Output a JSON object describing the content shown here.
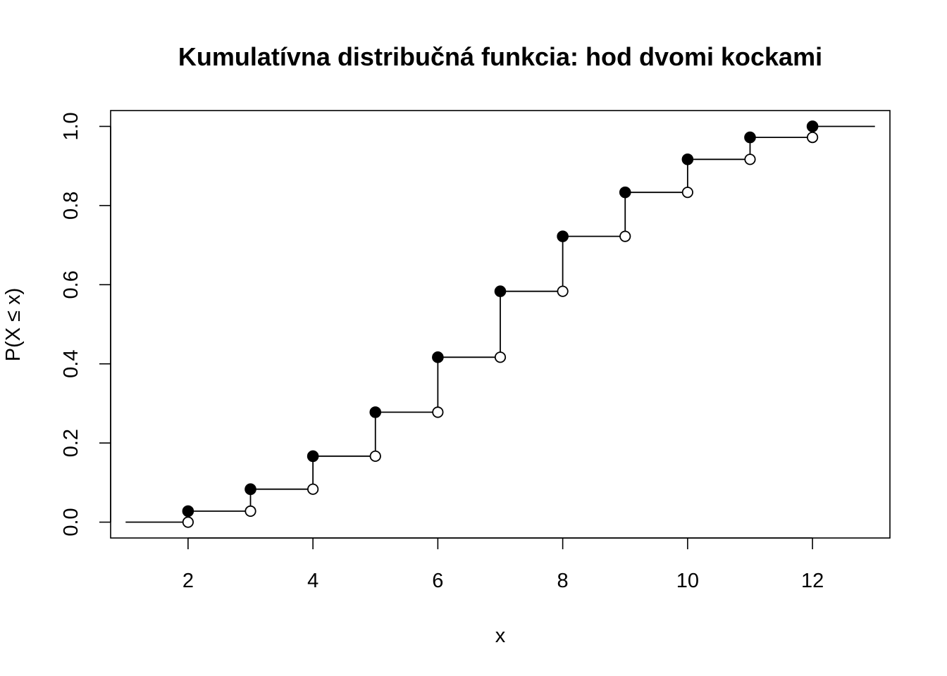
{
  "chart_data": {
    "type": "step",
    "title": "Kumulatívna distribučná funkcia: hod dvomi kockami",
    "xlabel": "x",
    "ylabel": "P(X ≤ x)",
    "xlim": [
      0.76,
      13.24
    ],
    "ylim": [
      -0.04,
      1.04
    ],
    "x_ticks": [
      2,
      4,
      6,
      8,
      10,
      12
    ],
    "y_ticks": [
      0.0,
      0.2,
      0.4,
      0.6,
      0.8,
      1.0
    ],
    "x_tick_labels": [
      "2",
      "4",
      "6",
      "8",
      "10",
      "12"
    ],
    "y_tick_labels": [
      "0.0",
      "0.2",
      "0.4",
      "0.6",
      "0.8",
      "1.0"
    ],
    "step_range": [
      1,
      13
    ],
    "x": [
      2,
      3,
      4,
      5,
      6,
      7,
      8,
      9,
      10,
      11,
      12
    ],
    "cdf": [
      0.0278,
      0.0833,
      0.1667,
      0.2778,
      0.4167,
      0.5833,
      0.7222,
      0.8333,
      0.9167,
      0.9722,
      1.0
    ],
    "cdf_left_limit": [
      0.0,
      0.0278,
      0.0833,
      0.1667,
      0.2778,
      0.4167,
      0.5833,
      0.7222,
      0.8333,
      0.9167,
      0.9722
    ],
    "markers": {
      "filled": "cdf value at x",
      "open": "left limit at x"
    },
    "grid": false,
    "colors": {
      "line": "#000000",
      "background": "#ffffff"
    }
  }
}
